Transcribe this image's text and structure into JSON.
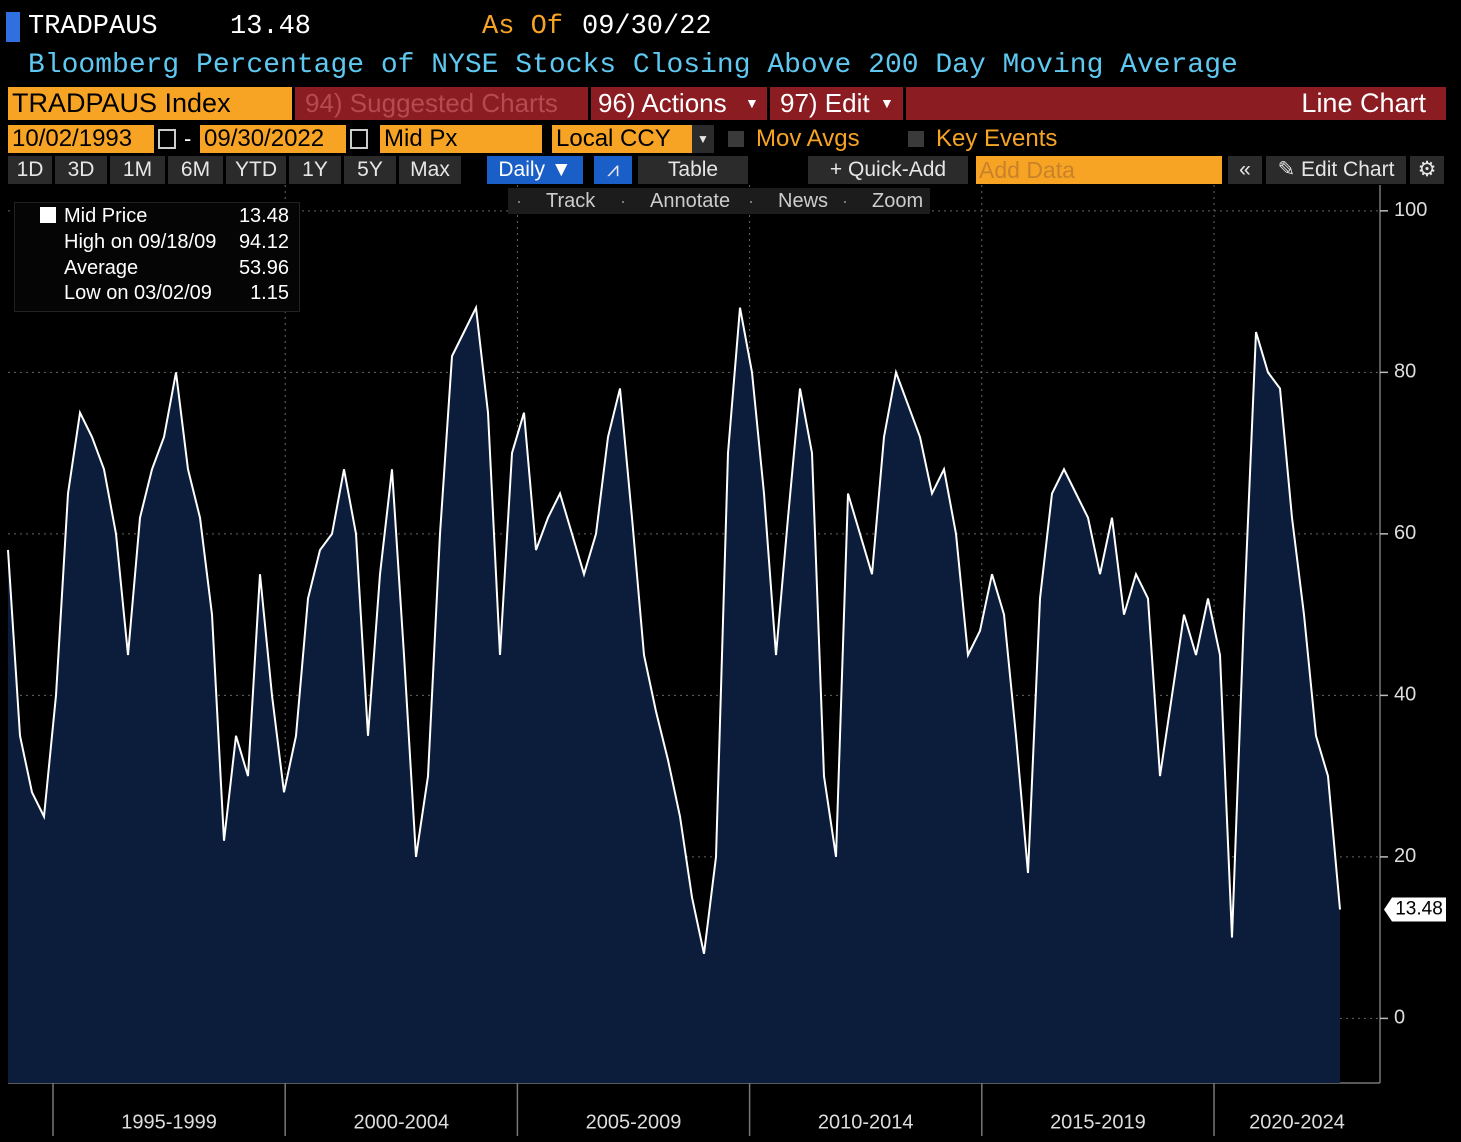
{
  "header": {
    "ticker": "TRADPAUS",
    "price": "13.48",
    "as_of_label": "As Of",
    "as_of_date": "09/30/22",
    "description": "Bloomberg Percentage of NYSE Stocks Closing Above 200 Day Moving Average"
  },
  "menu": {
    "security": "TRADPAUS Index",
    "suggested": "94) Suggested Charts",
    "actions": "96) Actions",
    "edit": "97) Edit",
    "chart_type": "Line Chart"
  },
  "controls": {
    "start_date": "10/02/1993",
    "separator": "-",
    "end_date": "09/30/2022",
    "field": "Mid Px",
    "currency": "Local CCY",
    "mov_avgs": "Mov Avgs",
    "key_events": "Key Events"
  },
  "toolbar": {
    "periods": [
      "1D",
      "3D",
      "1M",
      "6M",
      "YTD",
      "1Y",
      "5Y",
      "Max"
    ],
    "frequency": "Daily",
    "table": "Table",
    "quick_add": "+ Quick-Add",
    "add_data": "Add Data",
    "edit_chart": "Edit Chart"
  },
  "chart_tools": [
    "Track",
    "Annotate",
    "News",
    "Zoom"
  ],
  "chart_data": {
    "type": "line",
    "series": [
      {
        "name": "Mid Price",
        "color": "#ffffff",
        "fill": "#0b1d3a",
        "values": [
          58,
          35,
          28,
          25,
          40,
          65,
          75,
          72,
          68,
          60,
          45,
          62,
          68,
          72,
          80,
          68,
          62,
          50,
          22,
          35,
          30,
          55,
          40,
          28,
          35,
          52,
          58,
          60,
          68,
          60,
          35,
          55,
          68,
          45,
          20,
          30,
          60,
          82,
          85,
          88,
          75,
          45,
          70,
          75,
          58,
          62,
          65,
          60,
          55,
          60,
          72,
          78,
          62,
          45,
          38,
          32,
          25,
          15,
          8,
          20,
          70,
          88,
          80,
          65,
          45,
          62,
          78,
          70,
          30,
          20,
          65,
          60,
          55,
          72,
          80,
          76,
          72,
          65,
          68,
          60,
          45,
          48,
          55,
          50,
          35,
          18,
          52,
          65,
          68,
          65,
          62,
          55,
          62,
          50,
          55,
          52,
          30,
          40,
          50,
          45,
          52,
          45,
          10,
          50,
          85,
          80,
          78,
          62,
          50,
          35,
          30,
          13.48
        ]
      }
    ],
    "legend_stats": [
      {
        "label": "High on 09/18/09",
        "value": 94.12
      },
      {
        "label": "Average",
        "value": 53.96
      },
      {
        "label": "Low on 03/02/09",
        "value": 1.15
      }
    ],
    "x_period_labels": [
      "1995-1999",
      "2000-2004",
      "2005-2009",
      "2010-2014",
      "2015-2019",
      "2020-2024"
    ],
    "ylim": [
      -8,
      103.2
    ],
    "yticks": [
      0,
      20,
      40,
      60,
      80,
      100
    ],
    "grid": true
  }
}
